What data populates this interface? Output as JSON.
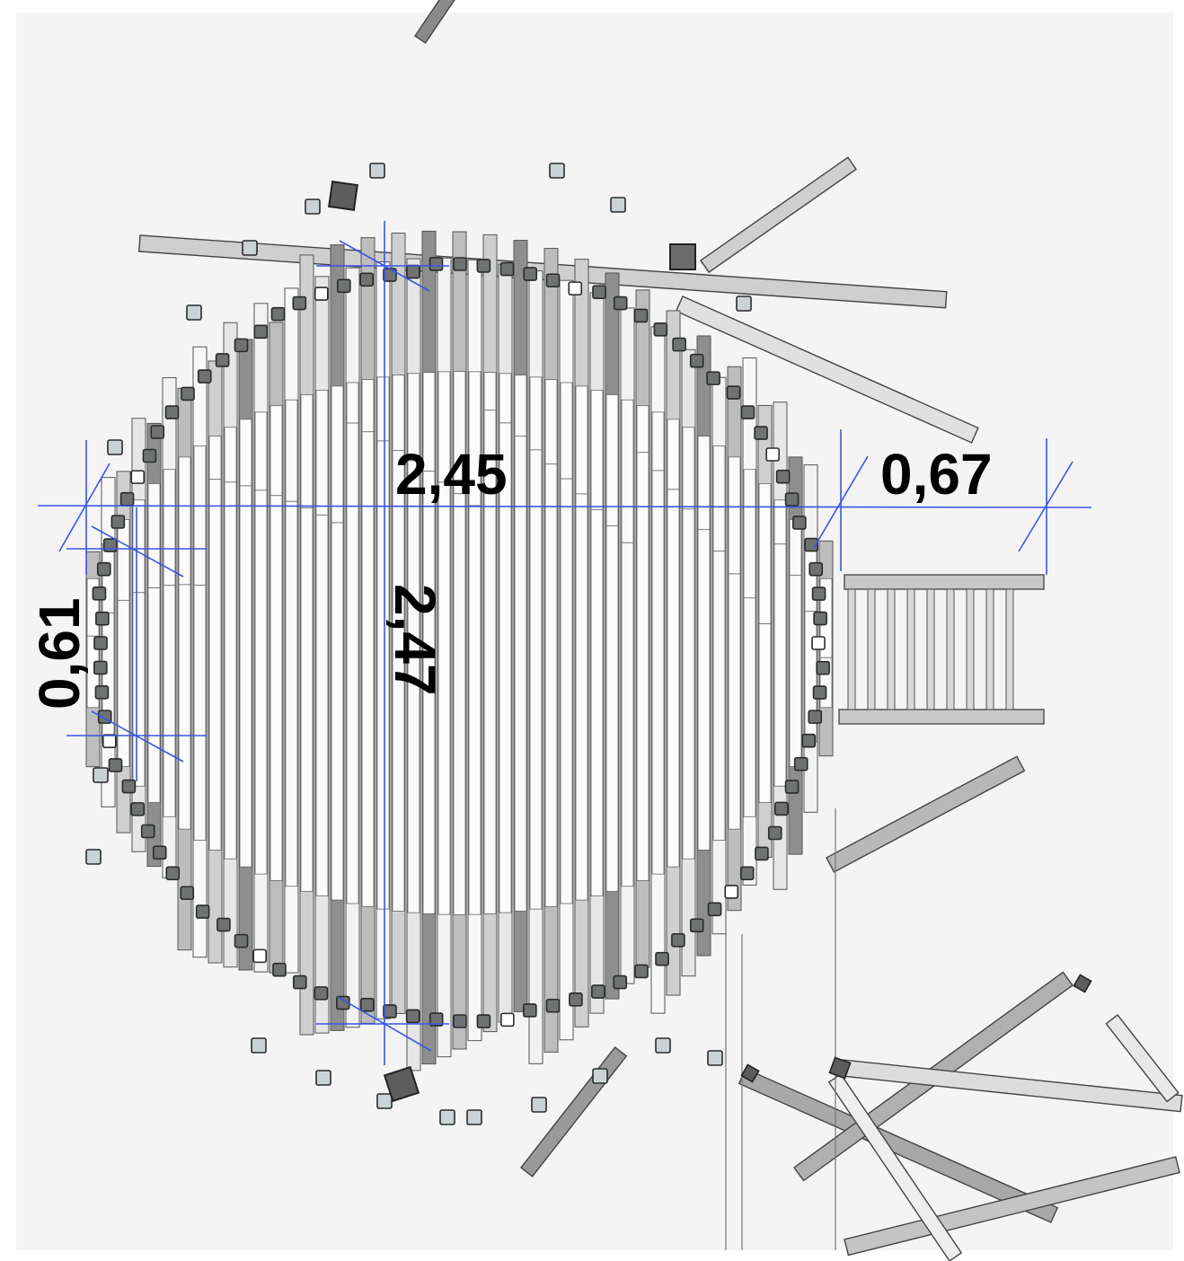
{
  "dimensions": {
    "horizontal_diameter": "2,45",
    "vertical_diameter": "2,47",
    "right_offset": "0,67",
    "left_offset": "0,61"
  },
  "colors": {
    "background": "#f4f4f4",
    "dimension_line": "#3a55e6",
    "beam_light": "#f8f8f8",
    "beam_mid": "#cfcfcf",
    "beam_dark": "#8e8e8e",
    "post_fill": "#6f7273",
    "post_light_fill": "#c9d3d6",
    "outline": "#2a2a2a"
  }
}
